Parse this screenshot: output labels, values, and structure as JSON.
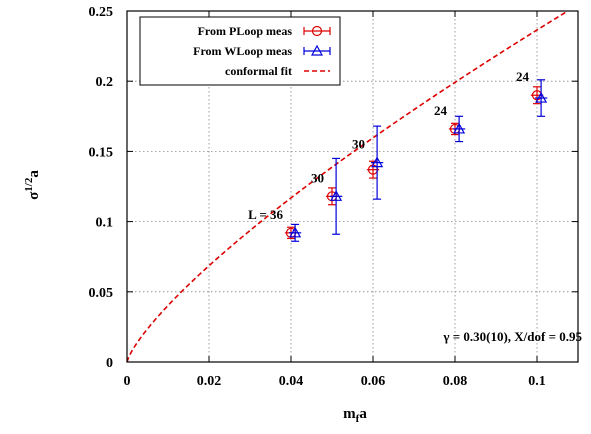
{
  "chart_data": {
    "type": "scatter",
    "xlabel": "m",
    "xlabel_sub": "f",
    "xlabel_tail": "a",
    "ylabel": "σ",
    "ylabel_sup": "1/2",
    "ylabel_tail": "a",
    "xlim": [
      0,
      0.11
    ],
    "ylim": [
      0,
      0.25
    ],
    "xticks": [
      0,
      0.02,
      0.04,
      0.06,
      0.08,
      0.1
    ],
    "xtick_labels": [
      "0",
      "0.02",
      "0.04",
      "0.06",
      "0.08",
      "0.1"
    ],
    "yticks": [
      0,
      0.05,
      0.1,
      0.15,
      0.2,
      0.25
    ],
    "ytick_labels": [
      "0",
      "0.05",
      "0.1",
      "0.15",
      "0.2",
      "0.25"
    ],
    "grid": true,
    "grid_style": "dotted",
    "legend_position": "top-left",
    "series": [
      {
        "name": "From PLoop meas",
        "marker": "circle",
        "color": "#dd0000",
        "points": [
          {
            "x": 0.04,
            "y": 0.092,
            "yerr": 0.004,
            "xerr": 0.0015
          },
          {
            "x": 0.05,
            "y": 0.118,
            "yerr": 0.006,
            "xerr": 0.0015
          },
          {
            "x": 0.06,
            "y": 0.137,
            "yerr": 0.006,
            "xerr": 0.0015
          },
          {
            "x": 0.08,
            "y": 0.166,
            "yerr": 0.004,
            "xerr": 0.0015
          },
          {
            "x": 0.1,
            "y": 0.19,
            "yerr": 0.006,
            "xerr": 0.0015
          }
        ]
      },
      {
        "name": "From WLoop meas",
        "marker": "triangle",
        "color": "#0000dd",
        "points": [
          {
            "x": 0.041,
            "y": 0.092,
            "yerr": 0.006,
            "xerr": 0.0015
          },
          {
            "x": 0.051,
            "y": 0.118,
            "yerr": 0.027,
            "xerr": 0.0015
          },
          {
            "x": 0.061,
            "y": 0.142,
            "yerr": 0.026,
            "xerr": 0.0015
          },
          {
            "x": 0.081,
            "y": 0.166,
            "yerr": 0.009,
            "xerr": 0.0015
          },
          {
            "x": 0.101,
            "y": 0.188,
            "yerr": 0.013,
            "xerr": 0.0015
          }
        ]
      }
    ],
    "fit": {
      "name": "conformal fit",
      "color": "#dd0000",
      "style": "dashed",
      "function": "A * x^(1/(1+gamma))",
      "A": 1.39,
      "gamma": 0.3
    },
    "point_labels": [
      {
        "text": "L = 36",
        "x": 0.04,
        "y": 0.092
      },
      {
        "text": "30",
        "x": 0.05,
        "y": 0.118
      },
      {
        "text": "30",
        "x": 0.06,
        "y": 0.142
      },
      {
        "text": "24",
        "x": 0.08,
        "y": 0.166
      },
      {
        "text": "24",
        "x": 0.1,
        "y": 0.19
      }
    ],
    "annotation": "γ = 0.30(10), X/dof = 0.95"
  }
}
